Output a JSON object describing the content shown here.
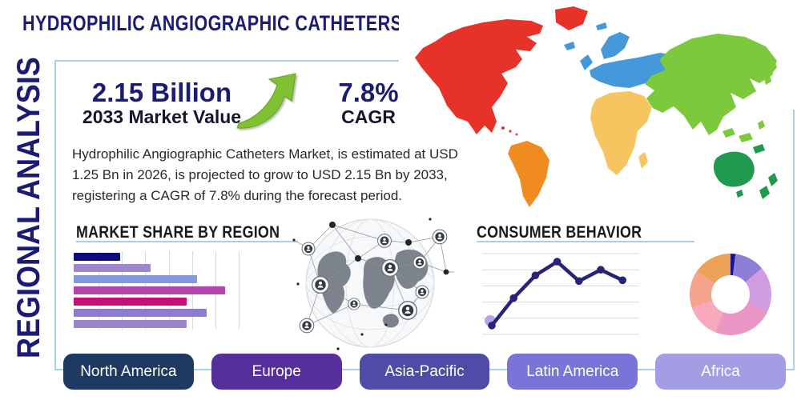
{
  "header": {
    "title": "HYDROPHILIC ANGIOGRAPHIC CATHETERS MARKET"
  },
  "sidebar": {
    "vertical_label": "REGIONAL ANALYSIS"
  },
  "stats": {
    "market_value": "2.15 Billion",
    "market_value_label": "2033 Market Value",
    "cagr_value": "7.8%",
    "cagr_label": "CAGR",
    "arrow_color": "#7fc133"
  },
  "description": "Hydrophilic Angiographic Catheters Market, is estimated at USD 1.25 Bn in 2026, is projected to grow to USD 2.15 Bn by 2033, registering a CAGR of 7.8% during the forecast period.",
  "accent": {
    "panel_border": "#a8d2e4",
    "navy": "#1b1b75"
  },
  "chart_data": [
    {
      "type": "bar",
      "title": "MARKET SHARE BY REGION",
      "orientation": "horizontal",
      "values_pct": [
        28,
        46,
        74,
        91,
        68,
        80,
        68
      ],
      "bar_colors": [
        "#0c0c7e",
        "#9e86cf",
        "#8399dd",
        "#b244ae",
        "#c50f78",
        "#8d7bd0",
        "#9c85cf"
      ],
      "grid": "vertical",
      "xlim": [
        0,
        100
      ]
    },
    {
      "type": "line",
      "title": "CONSUMER BEHAVIOR",
      "x": [
        1,
        2,
        3,
        4,
        5,
        6,
        7
      ],
      "values": [
        11,
        45,
        73,
        90,
        66,
        80,
        67
      ],
      "line_color": "#262379",
      "marker_color": "#262379",
      "first_point_halo_color": "#b9a1e6",
      "grid": "horizontal",
      "ylim": [
        0,
        100
      ]
    },
    {
      "type": "pie",
      "donut": true,
      "values_pct": [
        3,
        12,
        18,
        24,
        14,
        15,
        14
      ],
      "colors": [
        "#1b1490",
        "#8f7ed8",
        "#cf9ce2",
        "#ea97c6",
        "#f6a9bb",
        "#f3a48a",
        "#eaa257"
      ],
      "start_angle_deg": -4
    }
  ],
  "map": {
    "name": "world-map",
    "colors": {
      "north_america": "#e63228",
      "south_america": "#f08b1f",
      "europe": "#4599da",
      "africa": "#f6c55f",
      "asia": "#7cc93e",
      "oceania": "#219a50"
    }
  },
  "regions": [
    {
      "label": "North America",
      "color": "#1e3a60"
    },
    {
      "label": "Europe",
      "color": "#55309d"
    },
    {
      "label": "Asia-Pacific",
      "color": "#4f4ba6"
    },
    {
      "label": "Latin America",
      "color": "#7a74d8"
    },
    {
      "label": "Africa",
      "color": "#a39ee3"
    }
  ]
}
